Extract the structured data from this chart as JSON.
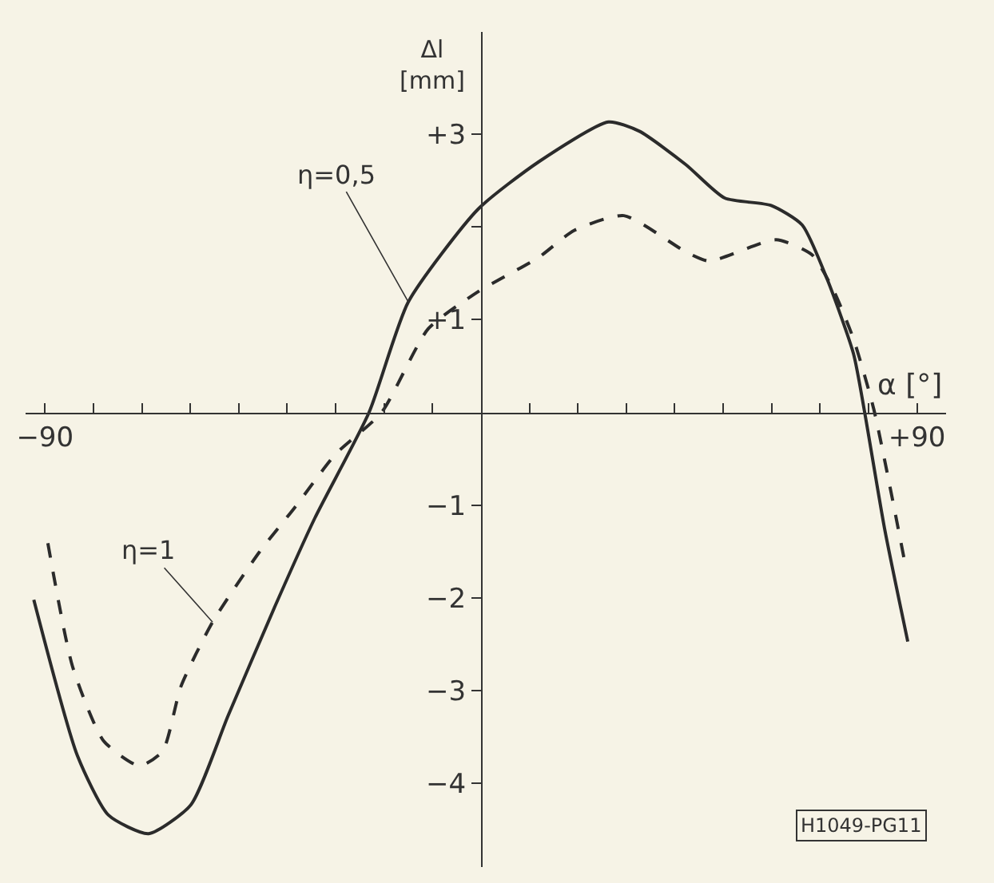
{
  "chart_data": {
    "type": "line",
    "xlabel": "α [°]",
    "ylabel": "Δl [mm]",
    "xlim": [
      -94,
      96
    ],
    "ylim": [
      -4.9,
      4.1
    ],
    "xticks": [
      {
        "value": -90,
        "label": "−90"
      },
      {
        "value": -80,
        "label": null
      },
      {
        "value": -70,
        "label": null
      },
      {
        "value": -60,
        "label": null
      },
      {
        "value": -50,
        "label": null
      },
      {
        "value": -40,
        "label": null
      },
      {
        "value": -30,
        "label": null
      },
      {
        "value": -20,
        "label": null
      },
      {
        "value": -10,
        "label": null
      },
      {
        "value": 10,
        "label": null
      },
      {
        "value": 20,
        "label": null
      },
      {
        "value": 30,
        "label": null
      },
      {
        "value": 40,
        "label": null
      },
      {
        "value": 50,
        "label": null
      },
      {
        "value": 60,
        "label": null
      },
      {
        "value": 70,
        "label": null
      },
      {
        "value": 80,
        "label": null
      },
      {
        "value": 90,
        "label": "+90"
      }
    ],
    "yticks": [
      {
        "value": 3,
        "label": "+3"
      },
      {
        "value": 2,
        "label": null
      },
      {
        "value": 1,
        "label": "+1"
      },
      {
        "value": -1,
        "label": "−1"
      },
      {
        "value": -2,
        "label": "−2"
      },
      {
        "value": -3,
        "label": "−3"
      },
      {
        "value": -4,
        "label": "−4"
      }
    ],
    "series": [
      {
        "color": "#2b2b2b",
        "line_style": "solid",
        "x": [
          -92.3,
          -83.3,
          -76.9,
          -68.6,
          -59.9,
          -52.2,
          -42.6,
          -34.3,
          -23.1,
          -15,
          -0.6,
          11.9,
          26.3,
          32.7,
          42.3,
          50.3,
          59.9,
          66.3,
          71.5,
          76.9,
          79.1,
          83.3,
          88.1
        ],
        "values": [
          -2.02,
          -3.7,
          -4.34,
          -4.54,
          -4.23,
          -3.27,
          -2.1,
          -1.14,
          0,
          1.19,
          2.19,
          2.7,
          3.13,
          3.03,
          2.67,
          2.31,
          2.23,
          2.02,
          1.43,
          0.63,
          0.03,
          -1.25,
          -2.47
        ]
      },
      {
        "color": "#2b2b2b",
        "line_style": "dashed",
        "x": [
          -89.4,
          -84.3,
          -77.9,
          -70.5,
          -65.7,
          -61.9,
          -55.4,
          -45.8,
          -38.5,
          -30,
          -20.5,
          -10.9,
          -0.6,
          11.9,
          19.2,
          29.5,
          42.3,
          47.1,
          60.9,
          68.3,
          72.8,
          76.9,
          81.1,
          87.5
        ],
        "values": [
          -1.41,
          -2.74,
          -3.54,
          -3.81,
          -3.65,
          -2.95,
          -2.26,
          -1.51,
          -1.03,
          -0.45,
          0,
          0.9,
          1.3,
          1.67,
          1.96,
          2.12,
          1.73,
          1.63,
          1.86,
          1.7,
          1.31,
          0.79,
          0.03,
          -1.62
        ]
      }
    ],
    "annotations": [
      {
        "text": "η=0,5",
        "x": -15,
        "y": 1.19
      },
      {
        "text": "η=1",
        "x": -55.4,
        "y": -2.26
      },
      "H1049-PG11"
    ]
  }
}
